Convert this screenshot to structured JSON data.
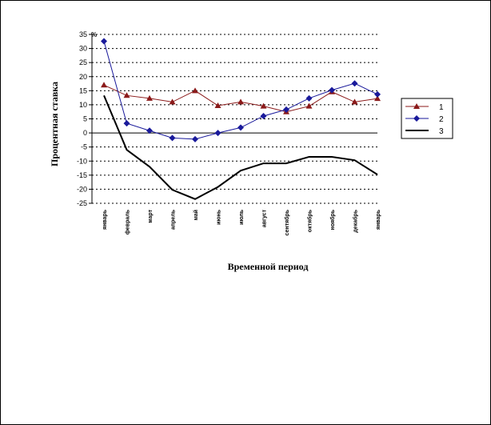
{
  "chart_data": {
    "type": "line",
    "title": "",
    "xlabel": "Временной период",
    "ylabel": "Процентная ставка",
    "y_unit": "%",
    "ylim": [
      -25,
      35
    ],
    "ytick_step": 5,
    "grid": "horizontal-dashed",
    "legend_position": "right",
    "categories": [
      "январь",
      "февраль",
      "март",
      "апрель",
      "май",
      "июнь",
      "июль",
      "август",
      "сентябрь",
      "октябрь",
      "ноябрь",
      "декабрь",
      "январь"
    ],
    "series": [
      {
        "name": "1",
        "color": "#8B1A1A",
        "marker": "triangle",
        "values": [
          17,
          13.3,
          12.3,
          11,
          15,
          9.7,
          11,
          9.5,
          7.5,
          9.5,
          14.6,
          11,
          12.2
        ]
      },
      {
        "name": "2",
        "color": "#1A1A9B",
        "marker": "diamond",
        "values": [
          32.6,
          3.4,
          0.8,
          -1.8,
          -2.2,
          0,
          1.9,
          6,
          8.3,
          12.3,
          15.2,
          17.6,
          13.7
        ]
      },
      {
        "name": "3",
        "color": "#000000",
        "marker": "none",
        "values": [
          13.3,
          -6,
          -12,
          -20.2,
          -23.5,
          -19.2,
          -13.4,
          -10.8,
          -10.8,
          -8.5,
          -8.5,
          -9.7,
          -14.8
        ]
      }
    ]
  }
}
